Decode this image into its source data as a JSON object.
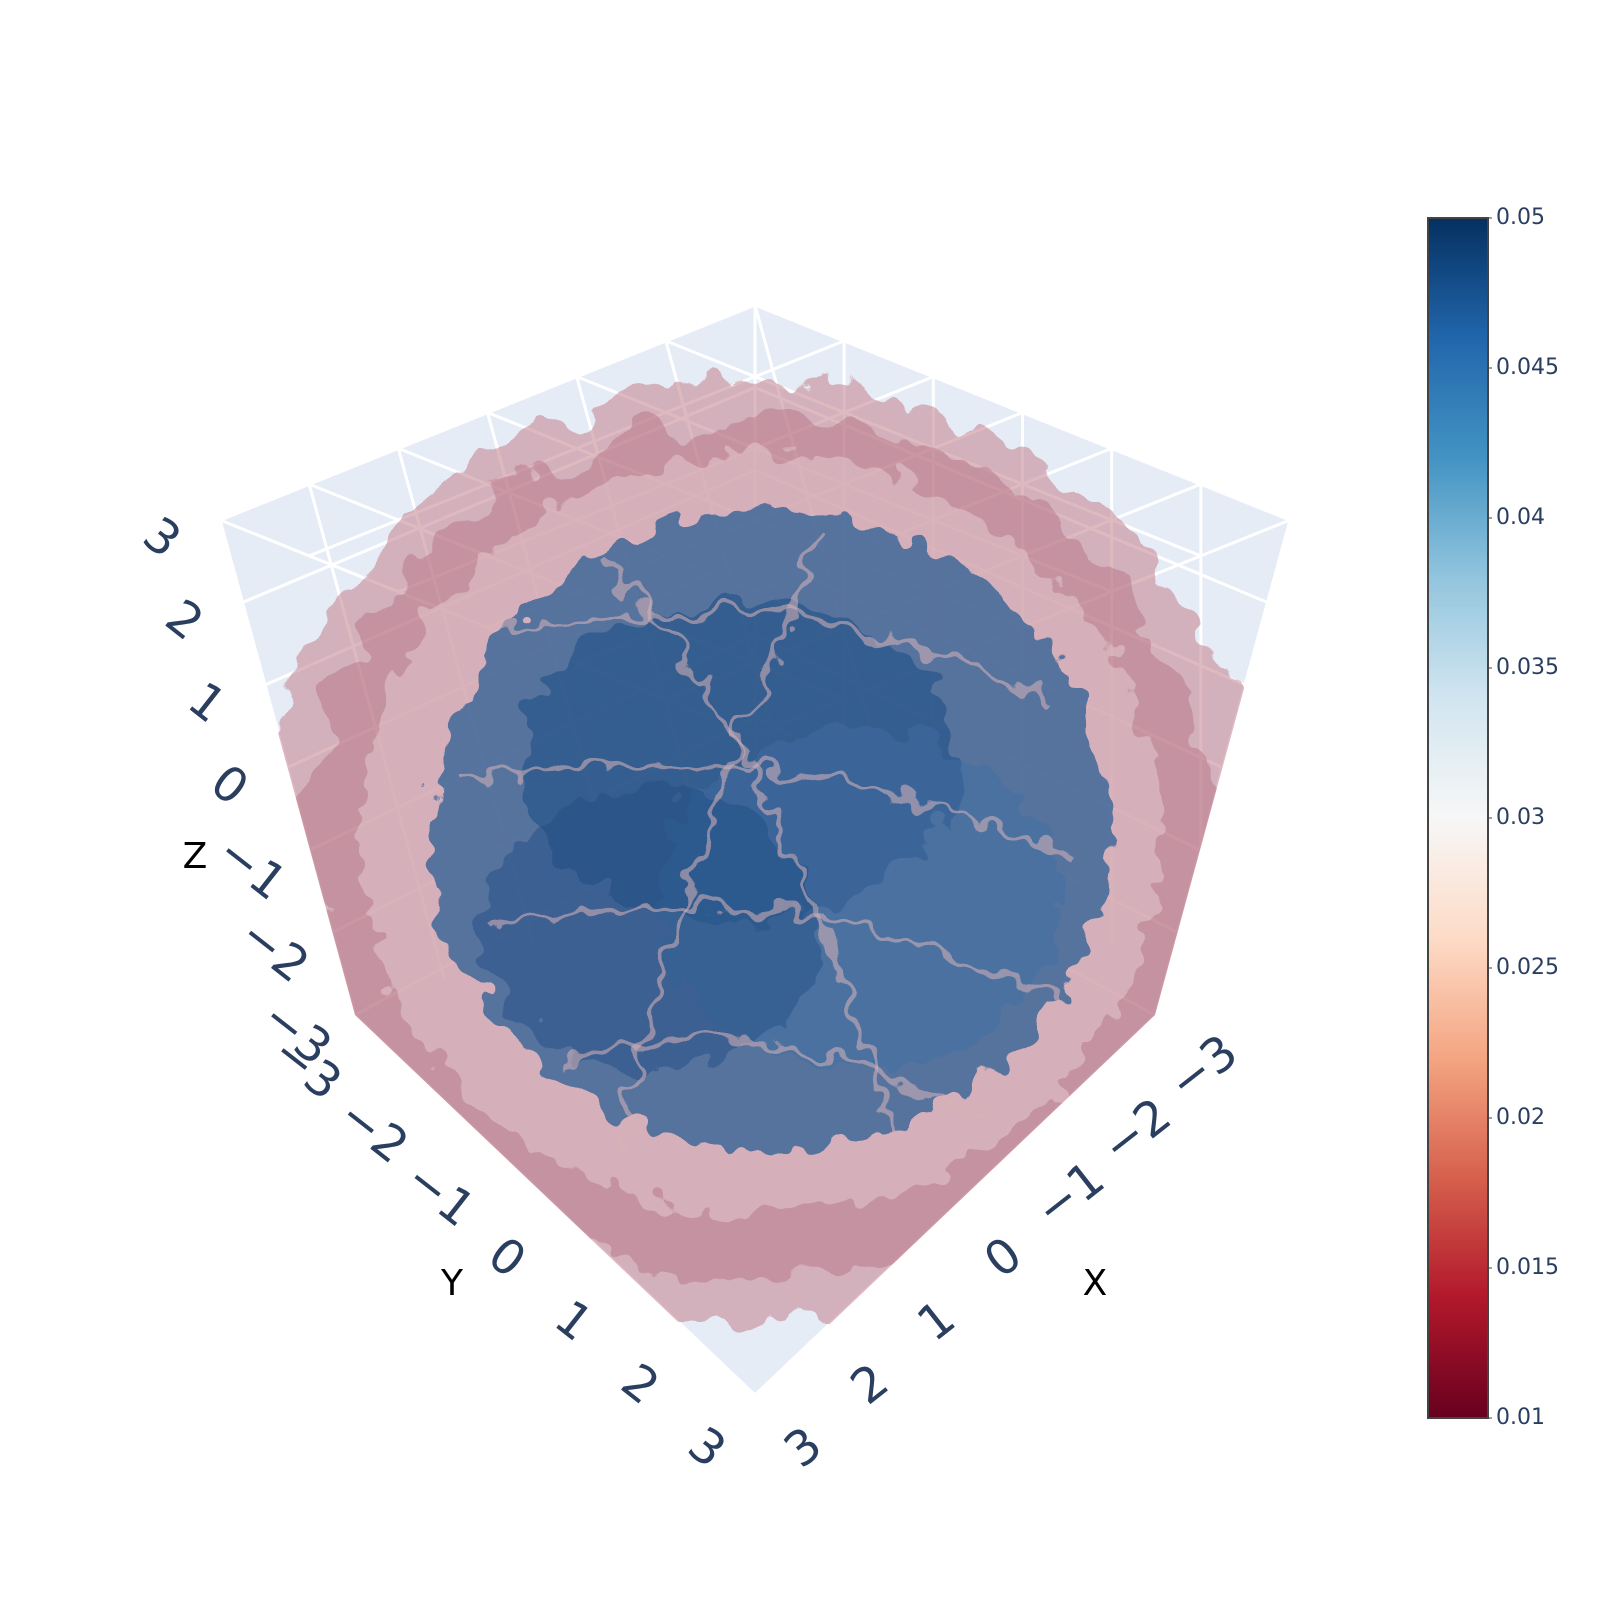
{
  "chart_data": {
    "type": "volume",
    "title": "",
    "axes": {
      "x": {
        "title": "X",
        "ticks": [
          -3,
          -2,
          -1,
          0,
          1,
          2,
          3
        ],
        "range": [
          -3,
          3
        ]
      },
      "y": {
        "title": "Y",
        "ticks": [
          -3,
          -2,
          -1,
          0,
          1,
          2,
          3
        ],
        "range": [
          -3,
          3
        ]
      },
      "z": {
        "title": "Z",
        "ticks": [
          -3,
          -2,
          -1,
          0,
          1,
          2,
          3
        ],
        "range": [
          -3,
          3
        ]
      }
    },
    "scene_background": "#e5ecf6",
    "grid": true,
    "value_range": [
      0.01,
      0.05
    ],
    "colorscale": "RdBu",
    "colorscale_stops": [
      "#67001f",
      "#b2182b",
      "#d6604d",
      "#f4a582",
      "#fddbc7",
      "#f7f7f7",
      "#d1e5f0",
      "#92c5de",
      "#4393c3",
      "#2166ac",
      "#053061"
    ],
    "colorbar": {
      "ticks": [
        "0.01",
        "0.015",
        "0.02",
        "0.025",
        "0.03",
        "0.035",
        "0.04",
        "0.045",
        "0.05"
      ],
      "placement": "right"
    },
    "description_of_field": "higher values (blue) concentrated in the centre, lower values (red) toward the outer shell"
  }
}
